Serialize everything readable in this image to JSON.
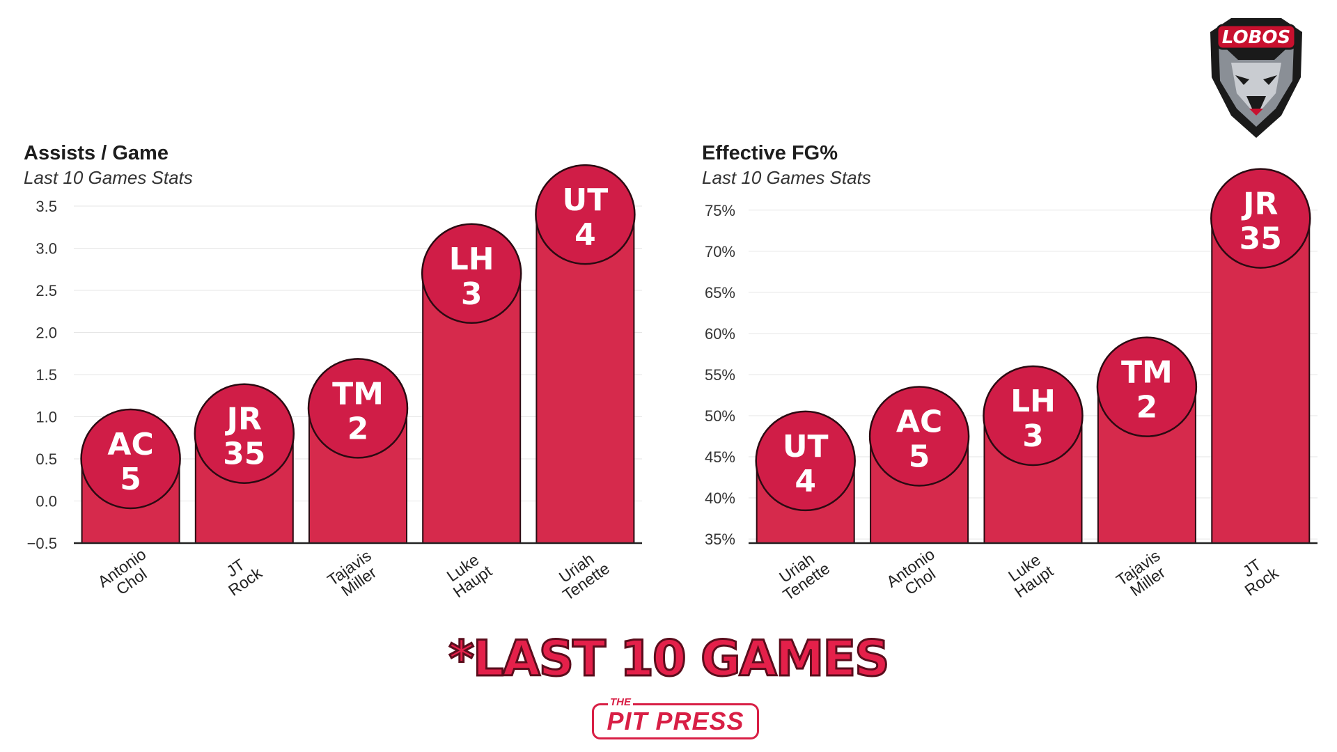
{
  "chart_data": [
    {
      "type": "bar",
      "title": "Assists / Game",
      "subtitle": "Last 10 Games Stats",
      "categories": [
        "Antonio Chol",
        "JT Rock",
        "Tajavis Miller",
        "Luke Haupt",
        "Uriah Tenette"
      ],
      "values": [
        0.5,
        0.8,
        1.1,
        2.7,
        3.4
      ],
      "badges": [
        {
          "initials": "AC",
          "number": "5"
        },
        {
          "initials": "JR",
          "number": "35"
        },
        {
          "initials": "TM",
          "number": "2"
        },
        {
          "initials": "LH",
          "number": "3"
        },
        {
          "initials": "UT",
          "number": "4"
        }
      ],
      "ylim": [
        -0.5,
        3.5
      ],
      "yticks": [
        -0.5,
        0.0,
        0.5,
        1.0,
        1.5,
        2.0,
        2.5,
        3.0,
        3.5
      ],
      "ytick_labels": [
        "−0.5",
        "0.0",
        "0.5",
        "1.0",
        "1.5",
        "2.0",
        "2.5",
        "3.0",
        "3.5"
      ],
      "grid": true,
      "bar_color": "#d62a4c"
    },
    {
      "type": "bar",
      "title": "Effective FG%",
      "subtitle": "Last 10 Games Stats",
      "categories": [
        "Uriah Tenette",
        "Antonio Chol",
        "Luke Haupt",
        "Tajavis Miller",
        "JT Rock"
      ],
      "values": [
        44.5,
        47.5,
        50.0,
        53.5,
        74.0
      ],
      "badges": [
        {
          "initials": "UT",
          "number": "4"
        },
        {
          "initials": "AC",
          "number": "5"
        },
        {
          "initials": "LH",
          "number": "3"
        },
        {
          "initials": "TM",
          "number": "2"
        },
        {
          "initials": "JR",
          "number": "35"
        }
      ],
      "ylim": [
        34.5,
        76
      ],
      "yticks": [
        35,
        40,
        45,
        50,
        55,
        60,
        65,
        70,
        75
      ],
      "ytick_labels": [
        "35%",
        "40%",
        "45%",
        "50%",
        "55%",
        "60%",
        "65%",
        "70%",
        "75%"
      ],
      "grid": true,
      "bar_color": "#d62a4c"
    }
  ],
  "footnote": "*LAST 10 GAMES",
  "brand": {
    "small": "THE",
    "main": "PIT PRESS"
  },
  "logo": {
    "text": "LOBOS",
    "icon": "lobo-wolf-icon",
    "color": "#c8102e"
  }
}
